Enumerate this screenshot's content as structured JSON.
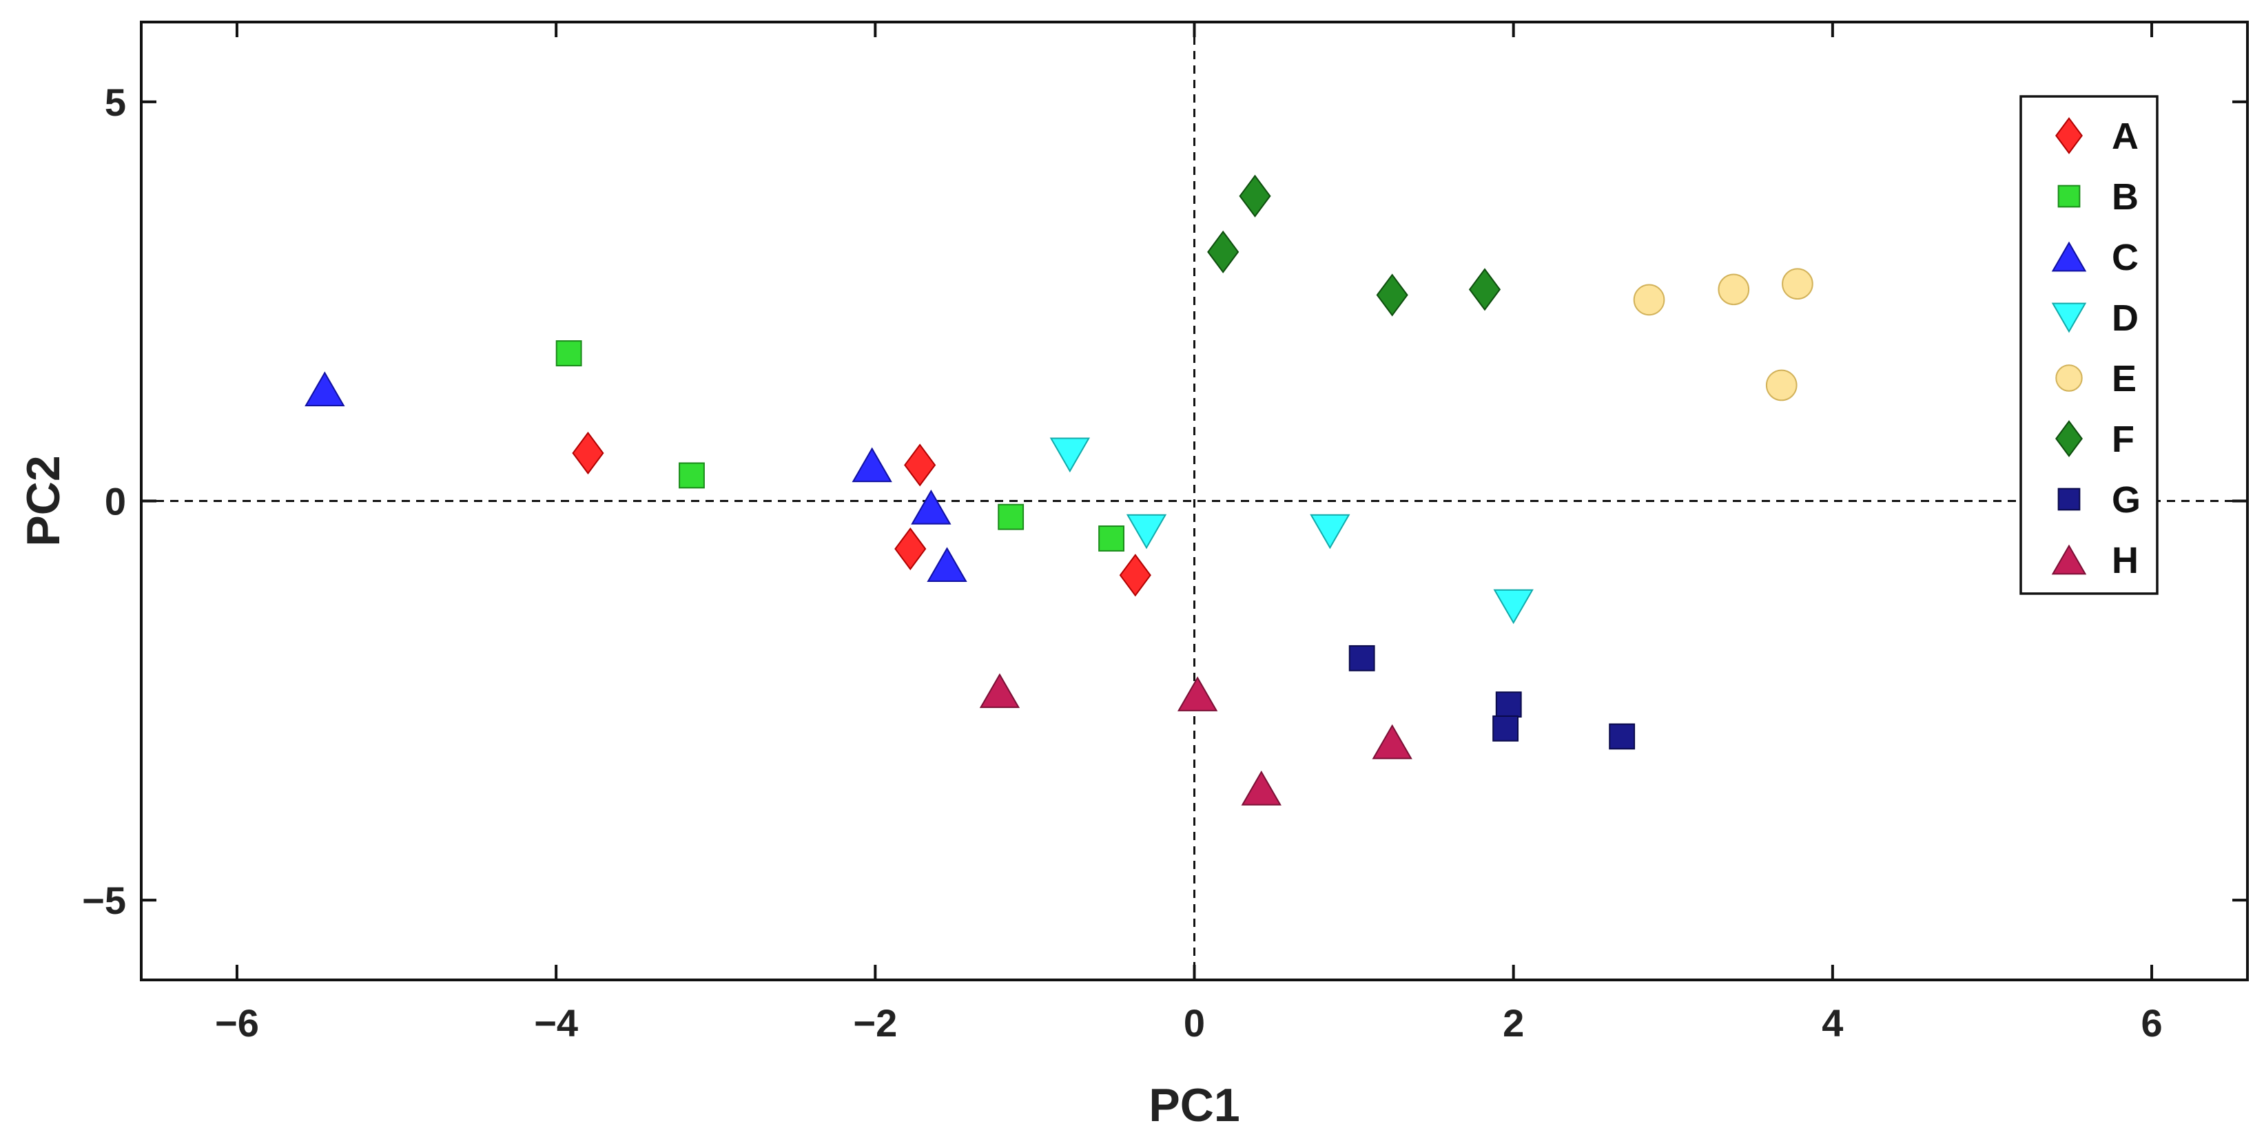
{
  "chart_data": {
    "type": "scatter",
    "title": "",
    "xlabel": "PC1",
    "ylabel": "PC2",
    "xlim": [
      -6.6,
      6.6
    ],
    "ylim": [
      -6.0,
      6.0
    ],
    "xticks": [
      -6,
      -4,
      -2,
      0,
      2,
      4,
      6
    ],
    "yticks": [
      -5,
      0,
      5
    ],
    "xtick_labels": [
      "−6",
      "−4",
      "−2",
      "0",
      "2",
      "4",
      "6"
    ],
    "ytick_labels": [
      "−5",
      "0",
      "5"
    ],
    "reference_lines": {
      "x": 0,
      "y": 0,
      "style": "dashed"
    },
    "grid": false,
    "legend_position": "top-right",
    "series": [
      {
        "name": "A",
        "marker": "diamond",
        "color": "#ff2a2a",
        "stroke": "#b00000",
        "points": [
          [
            -3.8,
            0.6
          ],
          [
            -1.72,
            0.45
          ],
          [
            -1.78,
            -0.6
          ],
          [
            -0.37,
            -0.93
          ]
        ]
      },
      {
        "name": "B",
        "marker": "square",
        "color": "#33dd33",
        "stroke": "#1a8a1a",
        "points": [
          [
            -3.92,
            1.85
          ],
          [
            -3.15,
            0.32
          ],
          [
            -1.15,
            -0.2
          ],
          [
            -0.52,
            -0.47
          ]
        ]
      },
      {
        "name": "C",
        "marker": "triangle-up",
        "color": "#2b2bff",
        "stroke": "#1010a0",
        "points": [
          [
            -5.45,
            1.4
          ],
          [
            -2.02,
            0.45
          ],
          [
            -1.65,
            -0.08
          ],
          [
            -1.55,
            -0.8
          ]
        ]
      },
      {
        "name": "D",
        "marker": "triangle-down",
        "color": "#33ffff",
        "stroke": "#11aaaa",
        "points": [
          [
            -0.78,
            0.58
          ],
          [
            -0.3,
            -0.38
          ],
          [
            0.85,
            -0.38
          ],
          [
            2.0,
            -1.32
          ]
        ]
      },
      {
        "name": "E",
        "marker": "circle",
        "color": "#fde39a",
        "stroke": "#d2b25a",
        "points": [
          [
            2.85,
            2.52
          ],
          [
            3.38,
            2.65
          ],
          [
            3.78,
            2.72
          ],
          [
            3.68,
            1.45
          ]
        ]
      },
      {
        "name": "F",
        "marker": "diamond",
        "color": "#228b22",
        "stroke": "#0d4d0d",
        "points": [
          [
            0.38,
            3.82
          ],
          [
            0.18,
            3.12
          ],
          [
            1.24,
            2.58
          ],
          [
            1.82,
            2.65
          ]
        ]
      },
      {
        "name": "G",
        "marker": "square",
        "color": "#1a1a8a",
        "stroke": "#0a0a4a",
        "points": [
          [
            1.05,
            -1.97
          ],
          [
            1.97,
            -2.55
          ],
          [
            1.95,
            -2.85
          ],
          [
            2.68,
            -2.95
          ]
        ]
      },
      {
        "name": "H",
        "marker": "triangle-up",
        "color": "#c41e58",
        "stroke": "#7a0f35",
        "points": [
          [
            -1.22,
            -2.38
          ],
          [
            0.02,
            -2.42
          ],
          [
            1.24,
            -3.02
          ],
          [
            0.42,
            -3.6
          ]
        ]
      }
    ]
  }
}
